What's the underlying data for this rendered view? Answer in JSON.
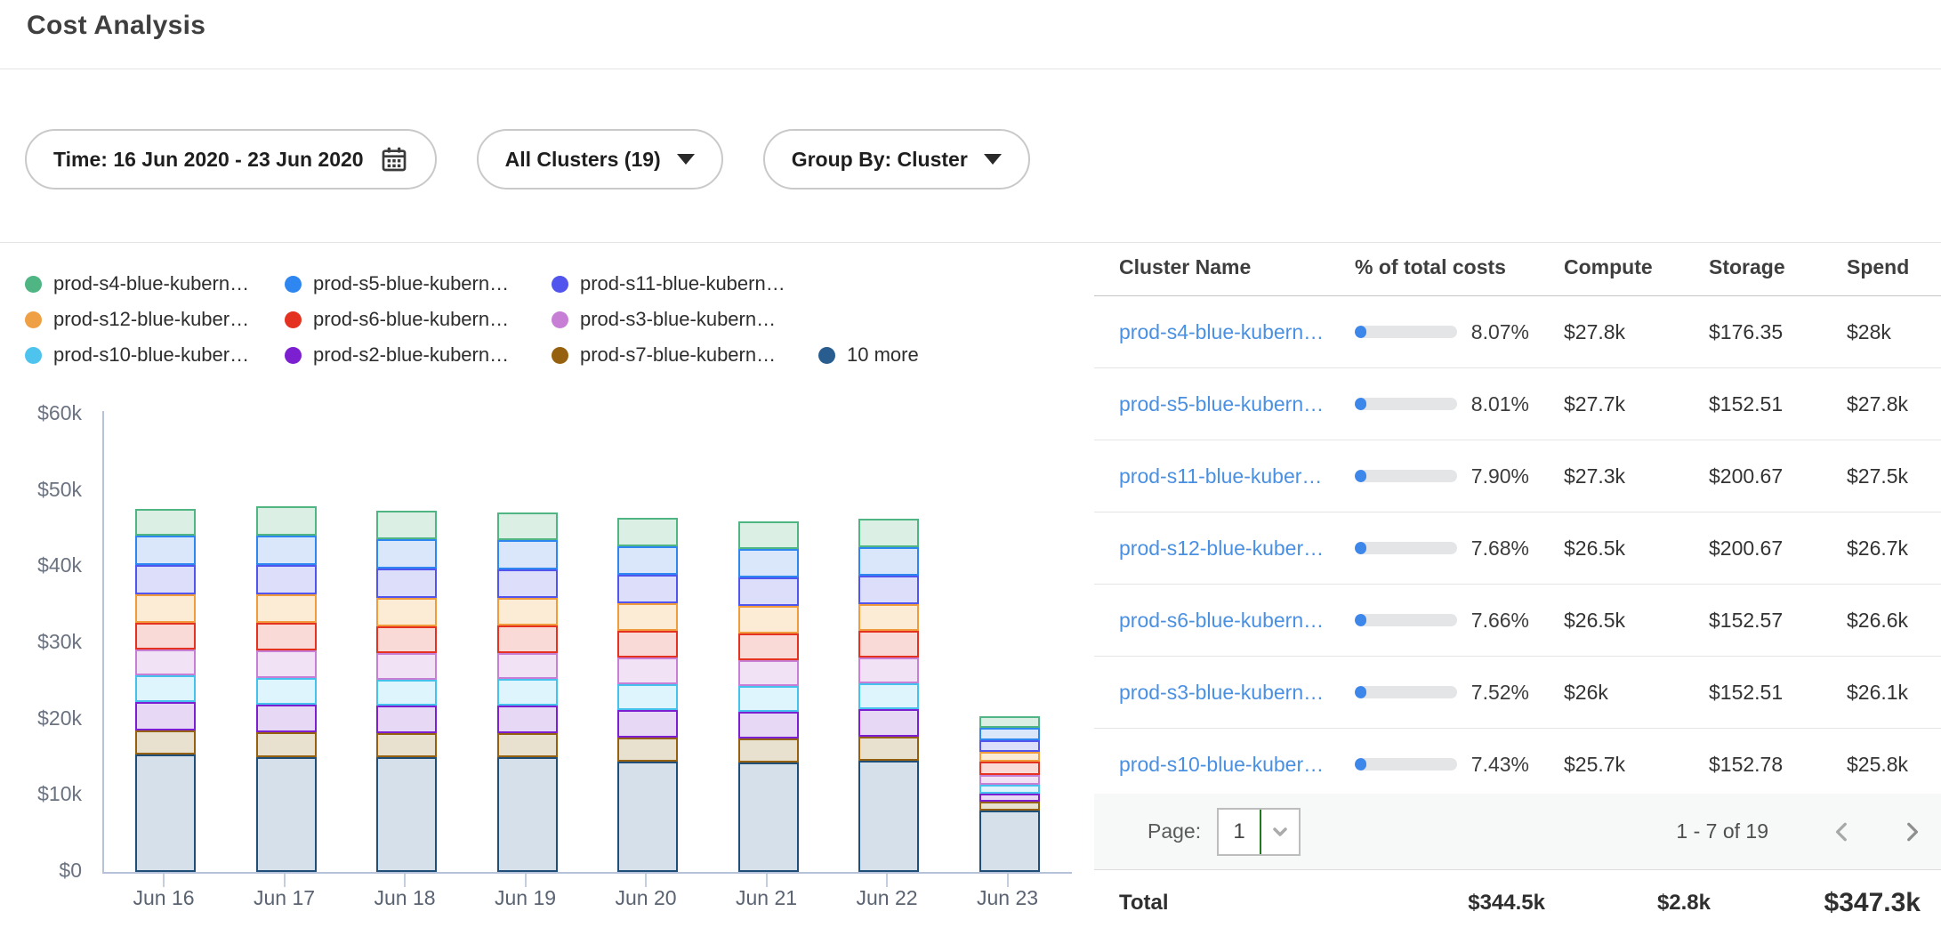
{
  "header": {
    "title": "Cost Analysis"
  },
  "filters": {
    "time_label": "Time: 16 Jun 2020 - 23 Jun 2020",
    "clusters_label": "All Clusters (19)",
    "group_by_label": "Group By: Cluster"
  },
  "chart_data": {
    "type": "bar",
    "stacked": true,
    "unit": "USD thousands",
    "categories": [
      "Jun 16",
      "Jun 17",
      "Jun 18",
      "Jun 19",
      "Jun 20",
      "Jun 21",
      "Jun 22",
      "Jun 23"
    ],
    "y_ticks": [
      "$60k",
      "$50k",
      "$40k",
      "$30k",
      "$20k",
      "$10k",
      "$0"
    ],
    "ylim_k": [
      0,
      60
    ],
    "grid": false,
    "legend_position": "top-left",
    "series": [
      {
        "name": "10 more",
        "color": "#2a5d8f",
        "border": "#1f4e79",
        "fill": "#d5e0ea",
        "values_k": [
          15.4,
          15.0,
          15.0,
          15.0,
          14.5,
          14.4,
          14.6,
          8.0
        ]
      },
      {
        "name": "prod-s7-blue-kubern…",
        "color": "#96610f",
        "border": "#96610f",
        "fill": "#e9e1d0",
        "values_k": [
          3.2,
          3.3,
          3.2,
          3.2,
          3.2,
          3.1,
          3.1,
          1.2
        ]
      },
      {
        "name": "prod-s2-blue-kubern…",
        "color": "#7b1fd0",
        "border": "#7b1fd0",
        "fill": "#e7d8f6",
        "values_k": [
          3.7,
          3.6,
          3.6,
          3.6,
          3.6,
          3.5,
          3.6,
          1.0
        ]
      },
      {
        "name": "prod-s10-blue-kuber…",
        "color": "#4ec3ee",
        "border": "#45c1ee",
        "fill": "#def5fd",
        "values_k": [
          3.5,
          3.5,
          3.4,
          3.5,
          3.4,
          3.4,
          3.4,
          1.2
        ]
      },
      {
        "name": "prod-s3-blue-kubern…",
        "color": "#c77fd6",
        "border": "#c77fd6",
        "fill": "#f2e2f5",
        "values_k": [
          3.4,
          3.6,
          3.5,
          3.4,
          3.5,
          3.4,
          3.4,
          1.3
        ]
      },
      {
        "name": "prod-s6-blue-kubern…",
        "color": "#e5311f",
        "border": "#e5311f",
        "fill": "#fadad6",
        "values_k": [
          3.5,
          3.6,
          3.5,
          3.6,
          3.5,
          3.5,
          3.5,
          1.8
        ]
      },
      {
        "name": "prod-s12-blue-kuber…",
        "color": "#f0a044",
        "border": "#f09c3c",
        "fill": "#fcebd5",
        "values_k": [
          3.7,
          3.7,
          3.7,
          3.6,
          3.6,
          3.6,
          3.5,
          1.3
        ]
      },
      {
        "name": "prod-s11-blue-kubern…",
        "color": "#5155ee",
        "border": "#5155ee",
        "fill": "#dddefa",
        "values_k": [
          3.8,
          3.8,
          3.8,
          3.7,
          3.7,
          3.7,
          3.7,
          1.5
        ]
      },
      {
        "name": "prod-s5-blue-kubern…",
        "color": "#2e86f0",
        "border": "#2e86f0",
        "fill": "#dae7fb",
        "values_k": [
          3.8,
          3.8,
          3.8,
          3.8,
          3.7,
          3.7,
          3.7,
          1.6
        ]
      },
      {
        "name": "prod-s4-blue-kubern…",
        "color": "#4fb583",
        "border": "#4fb583",
        "fill": "#dcefe4",
        "values_k": [
          3.5,
          3.9,
          3.7,
          3.6,
          3.7,
          3.6,
          3.7,
          1.5
        ]
      }
    ],
    "legend_rows": [
      [
        {
          "label": "prod-s4-blue-kubern…",
          "color": "#4fb583"
        },
        {
          "label": "prod-s5-blue-kubern…",
          "color": "#2e86f0"
        },
        {
          "label": "prod-s11-blue-kubern…",
          "color": "#5155ee"
        }
      ],
      [
        {
          "label": "prod-s12-blue-kuber…",
          "color": "#f0a044"
        },
        {
          "label": "prod-s6-blue-kubern…",
          "color": "#e5311f"
        },
        {
          "label": "prod-s3-blue-kubern…",
          "color": "#c77fd6"
        }
      ],
      [
        {
          "label": "prod-s10-blue-kuber…",
          "color": "#4ec3ee"
        },
        {
          "label": "prod-s2-blue-kubern…",
          "color": "#7b1fd0"
        },
        {
          "label": "prod-s7-blue-kubern…",
          "color": "#96610f"
        },
        {
          "label": "10 more",
          "color": "#2a5d8f"
        }
      ]
    ]
  },
  "table": {
    "columns": [
      "Cluster Name",
      "% of total costs",
      "Compute",
      "Storage",
      "Spend"
    ],
    "link_color": "#4a90e2",
    "bar_track_color": "#e3e5e7",
    "bar_fill_color": "#3d87ea",
    "rows": [
      {
        "name": "prod-s4-blue-kubern…",
        "pct": 8.07,
        "pct_label": "8.07%",
        "compute": "$27.8k",
        "storage": "$176.35",
        "spend": "$28k"
      },
      {
        "name": "prod-s5-blue-kubern…",
        "pct": 8.01,
        "pct_label": "8.01%",
        "compute": "$27.7k",
        "storage": "$152.51",
        "spend": "$27.8k"
      },
      {
        "name": "prod-s11-blue-kuber…",
        "pct": 7.9,
        "pct_label": "7.90%",
        "compute": "$27.3k",
        "storage": "$200.67",
        "spend": "$27.5k"
      },
      {
        "name": "prod-s12-blue-kuber…",
        "pct": 7.68,
        "pct_label": "7.68%",
        "compute": "$26.5k",
        "storage": "$200.67",
        "spend": "$26.7k"
      },
      {
        "name": "prod-s6-blue-kubern…",
        "pct": 7.66,
        "pct_label": "7.66%",
        "compute": "$26.5k",
        "storage": "$152.57",
        "spend": "$26.6k"
      },
      {
        "name": "prod-s3-blue-kubern…",
        "pct": 7.52,
        "pct_label": "7.52%",
        "compute": "$26k",
        "storage": "$152.51",
        "spend": "$26.1k"
      },
      {
        "name": "prod-s10-blue-kuber…",
        "pct": 7.43,
        "pct_label": "7.43%",
        "compute": "$25.7k",
        "storage": "$152.78",
        "spend": "$25.8k"
      }
    ]
  },
  "pagination": {
    "page_label": "Page:",
    "page_value": "1",
    "range_label": "1 - 7 of 19"
  },
  "totals": {
    "label": "Total",
    "compute": "$344.5k",
    "storage": "$2.8k",
    "spend": "$347.3k"
  }
}
